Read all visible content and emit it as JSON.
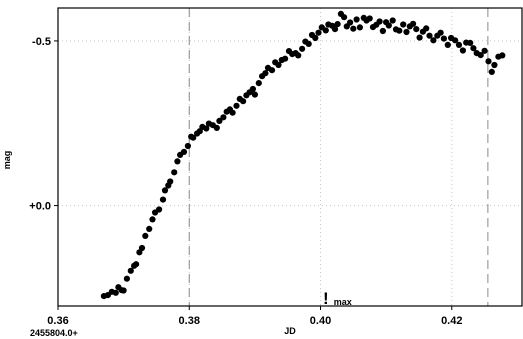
{
  "chart_data": {
    "type": "scatter",
    "xlabel": "JD",
    "ylabel": "mag",
    "x_offset_label": "2455804.0+",
    "xlim": [
      0.36,
      0.4307
    ],
    "ylim": [
      0.305,
      -0.6
    ],
    "y_inverted": true,
    "x_ticks": [
      {
        "value": 0.36,
        "label": "0.36"
      },
      {
        "value": 0.38,
        "label": "0.38"
      },
      {
        "value": 0.4,
        "label": "0.40"
      },
      {
        "value": 0.42,
        "label": "0.42"
      }
    ],
    "y_ticks": [
      {
        "value": -0.5,
        "label": "-0.5"
      },
      {
        "value": 0.0,
        "label": "+0.0"
      }
    ],
    "grid": "dotted",
    "reference_lines_x": [
      0.38,
      0.4255
    ],
    "max_marker": {
      "x": 0.4008,
      "label": "max",
      "symbol": "!"
    },
    "marker_color": "#000000",
    "points": [
      [
        0.367,
        0.275
      ],
      [
        0.3676,
        0.272
      ],
      [
        0.3682,
        0.262
      ],
      [
        0.3688,
        0.265
      ],
      [
        0.3692,
        0.248
      ],
      [
        0.3697,
        0.257
      ],
      [
        0.37,
        0.258
      ],
      [
        0.3705,
        0.222
      ],
      [
        0.3711,
        0.198
      ],
      [
        0.3716,
        0.183
      ],
      [
        0.3719,
        0.178
      ],
      [
        0.3724,
        0.142
      ],
      [
        0.3728,
        0.129
      ],
      [
        0.3733,
        0.092
      ],
      [
        0.3739,
        0.071
      ],
      [
        0.3744,
        0.042
      ],
      [
        0.3748,
        0.021
      ],
      [
        0.3754,
        0.012
      ],
      [
        0.376,
        -0.018
      ],
      [
        0.3763,
        -0.046
      ],
      [
        0.3768,
        -0.061
      ],
      [
        0.3771,
        -0.073
      ],
      [
        0.3777,
        -0.101
      ],
      [
        0.3782,
        -0.134
      ],
      [
        0.3786,
        -0.154
      ],
      [
        0.3792,
        -0.163
      ],
      [
        0.3798,
        -0.181
      ],
      [
        0.3803,
        -0.209
      ],
      [
        0.3806,
        -0.206
      ],
      [
        0.3812,
        -0.219
      ],
      [
        0.3816,
        -0.226
      ],
      [
        0.382,
        -0.239
      ],
      [
        0.3826,
        -0.234
      ],
      [
        0.383,
        -0.249
      ],
      [
        0.3836,
        -0.244
      ],
      [
        0.3842,
        -0.236
      ],
      [
        0.3846,
        -0.257
      ],
      [
        0.3852,
        -0.268
      ],
      [
        0.3857,
        -0.285
      ],
      [
        0.3862,
        -0.292
      ],
      [
        0.3866,
        -0.282
      ],
      [
        0.3872,
        -0.303
      ],
      [
        0.3877,
        -0.324
      ],
      [
        0.3882,
        -0.317
      ],
      [
        0.3887,
        -0.335
      ],
      [
        0.3892,
        -0.344
      ],
      [
        0.3897,
        -0.354
      ],
      [
        0.39,
        -0.337
      ],
      [
        0.3906,
        -0.372
      ],
      [
        0.3911,
        -0.393
      ],
      [
        0.3916,
        -0.402
      ],
      [
        0.392,
        -0.418
      ],
      [
        0.3926,
        -0.411
      ],
      [
        0.3931,
        -0.435
      ],
      [
        0.3936,
        -0.427
      ],
      [
        0.3941,
        -0.442
      ],
      [
        0.3946,
        -0.446
      ],
      [
        0.3952,
        -0.469
      ],
      [
        0.3957,
        -0.46
      ],
      [
        0.3962,
        -0.463
      ],
      [
        0.3966,
        -0.456
      ],
      [
        0.3972,
        -0.476
      ],
      [
        0.3977,
        -0.498
      ],
      [
        0.3982,
        -0.491
      ],
      [
        0.3987,
        -0.518
      ],
      [
        0.3992,
        -0.509
      ],
      [
        0.3997,
        -0.525
      ],
      [
        0.4002,
        -0.541
      ],
      [
        0.4008,
        -0.532
      ],
      [
        0.4012,
        -0.55
      ],
      [
        0.4018,
        -0.546
      ],
      [
        0.4022,
        -0.536
      ],
      [
        0.4026,
        -0.551
      ],
      [
        0.4031,
        -0.582
      ],
      [
        0.4036,
        -0.572
      ],
      [
        0.404,
        -0.544
      ],
      [
        0.4045,
        -0.556
      ],
      [
        0.405,
        -0.537
      ],
      [
        0.4055,
        -0.565
      ],
      [
        0.406,
        -0.541
      ],
      [
        0.4066,
        -0.57
      ],
      [
        0.407,
        -0.562
      ],
      [
        0.4075,
        -0.568
      ],
      [
        0.408,
        -0.542
      ],
      [
        0.4085,
        -0.549
      ],
      [
        0.409,
        -0.559
      ],
      [
        0.4095,
        -0.53
      ],
      [
        0.41,
        -0.557
      ],
      [
        0.4104,
        -0.547
      ],
      [
        0.411,
        -0.562
      ],
      [
        0.4115,
        -0.535
      ],
      [
        0.412,
        -0.531
      ],
      [
        0.4126,
        -0.55
      ],
      [
        0.4131,
        -0.527
      ],
      [
        0.4136,
        -0.544
      ],
      [
        0.4141,
        -0.552
      ],
      [
        0.4146,
        -0.536
      ],
      [
        0.4151,
        -0.51
      ],
      [
        0.4156,
        -0.528
      ],
      [
        0.4161,
        -0.538
      ],
      [
        0.4166,
        -0.516
      ],
      [
        0.4172,
        -0.502
      ],
      [
        0.4178,
        -0.516
      ],
      [
        0.4183,
        -0.525
      ],
      [
        0.4188,
        -0.507
      ],
      [
        0.4194,
        -0.488
      ],
      [
        0.4199,
        -0.509
      ],
      [
        0.4205,
        -0.502
      ],
      [
        0.4211,
        -0.488
      ],
      [
        0.4217,
        -0.471
      ],
      [
        0.4222,
        -0.495
      ],
      [
        0.4228,
        -0.494
      ],
      [
        0.4233,
        -0.478
      ],
      [
        0.4238,
        -0.463
      ],
      [
        0.4244,
        -0.457
      ],
      [
        0.425,
        -0.47
      ],
      [
        0.4256,
        -0.438
      ],
      [
        0.4261,
        -0.406
      ],
      [
        0.4265,
        -0.427
      ],
      [
        0.4271,
        -0.452
      ],
      [
        0.4277,
        -0.456
      ]
    ]
  }
}
